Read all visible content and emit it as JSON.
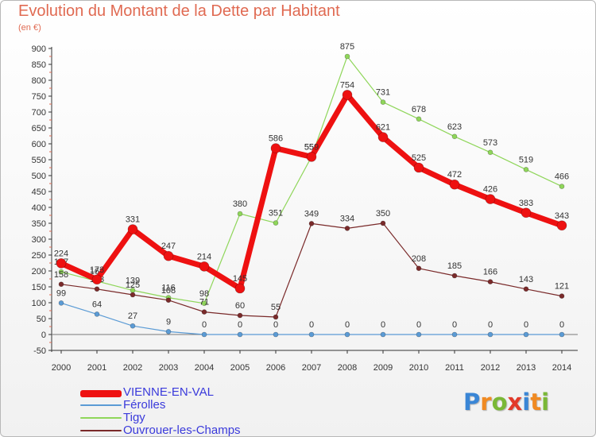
{
  "header": {
    "title": "Evolution du Montant de la Dette par Habitant",
    "subtitle": "(en €)"
  },
  "logo": {
    "letters": [
      "P",
      "r",
      "o",
      "x",
      "i",
      "t",
      "i"
    ],
    "colors": [
      "#3a86d6",
      "#f08a22",
      "#7ab836",
      "#e23a2a",
      "#3a86d6",
      "#f08a22",
      "#7ab836"
    ]
  },
  "chart_data": {
    "type": "line",
    "title": "Evolution du Montant de la Dette par Habitant",
    "subtitle": "(en €)",
    "x": [
      "2000",
      "2001",
      "2002",
      "2003",
      "2004",
      "2005",
      "2006",
      "2007",
      "2008",
      "2009",
      "2010",
      "2011",
      "2012",
      "2013",
      "2014"
    ],
    "yticks": [
      -50,
      0,
      50,
      100,
      150,
      200,
      250,
      300,
      350,
      400,
      450,
      500,
      550,
      600,
      650,
      700,
      750,
      800,
      850,
      900
    ],
    "ylim": [
      -50,
      900
    ],
    "grid": false,
    "legend_position": "bottom-left",
    "series": [
      {
        "name": "Tigy",
        "color": "#8fd65a",
        "values": [
          197,
          168,
          139,
          116,
          98,
          380,
          351,
          559,
          875,
          731,
          678,
          623,
          573,
          519,
          466
        ]
      },
      {
        "name": "Ouvrouer-les-Champs",
        "color": "#7a2a2a",
        "values": [
          158,
          143,
          125,
          108,
          71,
          60,
          55,
          349,
          334,
          350,
          208,
          185,
          166,
          143,
          121
        ]
      },
      {
        "name": "Férolles",
        "color": "#5b9bd5",
        "values": [
          99,
          64,
          27,
          9,
          0,
          0,
          0,
          0,
          0,
          0,
          0,
          0,
          0,
          0,
          0
        ]
      },
      {
        "name": "VIENNE-EN-VAL",
        "color": "#ee1111",
        "values": [
          224,
          173,
          331,
          247,
          214,
          145,
          586,
          559,
          754,
          621,
          525,
          472,
          426,
          383,
          343
        ]
      }
    ]
  },
  "legend": {
    "items": [
      {
        "label": "VIENNE-EN-VAL",
        "color": "#ee1111"
      },
      {
        "label": "Férolles",
        "color": "#5b9bd5"
      },
      {
        "label": "Tigy",
        "color": "#8fd65a"
      },
      {
        "label": "Ouvrouer-les-Champs",
        "color": "#7a2a2a"
      }
    ]
  }
}
